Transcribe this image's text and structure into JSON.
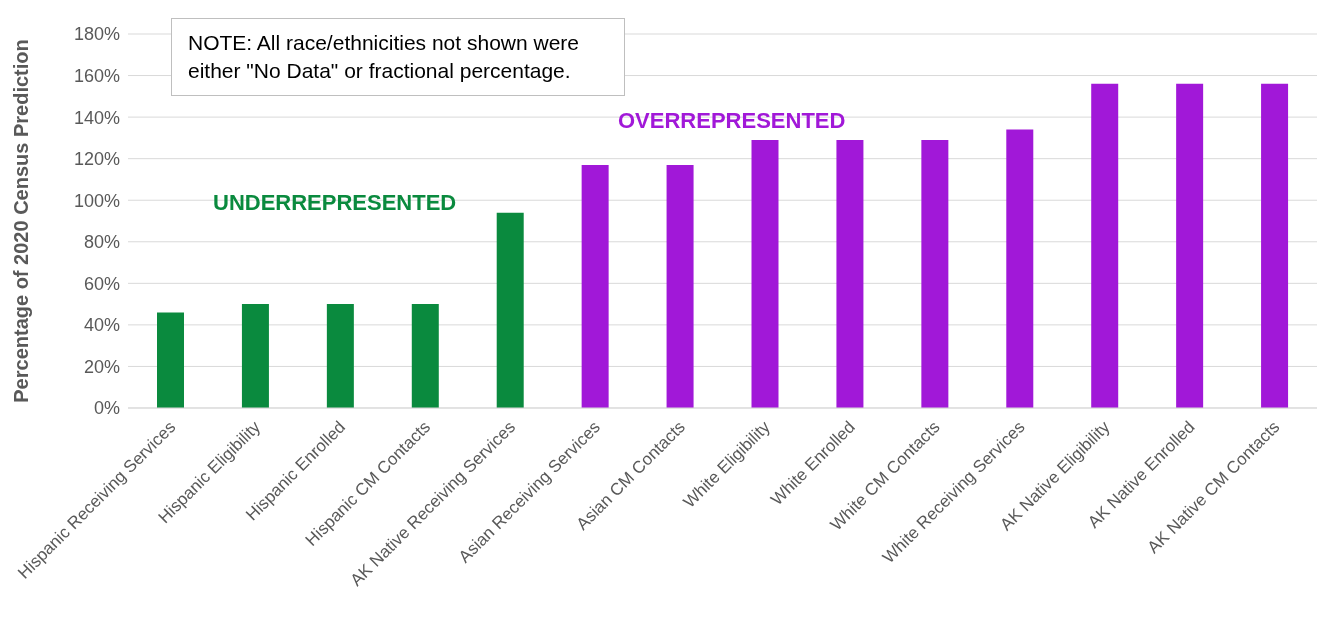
{
  "chart_data": {
    "type": "bar",
    "ylabel": "Percentage of 2020 Census Prediction",
    "categories": [
      "Hispanic Receiving Services",
      "Hispanic Eligibility",
      "Hispanic Enrolled",
      "Hispanic CM Contacts",
      "AK Native Receiving Services",
      "Asian Receiving Services",
      "Asian CM Contacts",
      "White  Eligibility",
      "White  Enrolled",
      "White  CM Contacts",
      "White  Receiving Services",
      "AK Native Eligibility",
      "AK Native Enrolled",
      "AK Native CM Contacts"
    ],
    "values": [
      46,
      50,
      50,
      50,
      94,
      117,
      117,
      129,
      129,
      129,
      134,
      156,
      156,
      156
    ],
    "colors": [
      "#0a8a3e",
      "#0a8a3e",
      "#0a8a3e",
      "#0a8a3e",
      "#0a8a3e",
      "#a118d8",
      "#a118d8",
      "#a118d8",
      "#a118d8",
      "#a118d8",
      "#a118d8",
      "#a118d8",
      "#a118d8",
      "#a118d8"
    ],
    "ylim": [
      0,
      180
    ],
    "yticks": [
      {
        "value": 0,
        "label": "0%"
      },
      {
        "value": 20,
        "label": "20%"
      },
      {
        "value": 40,
        "label": "40%"
      },
      {
        "value": 60,
        "label": "60%"
      },
      {
        "value": 80,
        "label": "80%"
      },
      {
        "value": 100,
        "label": "100%"
      },
      {
        "value": 120,
        "label": "120%"
      },
      {
        "value": 140,
        "label": "140%"
      },
      {
        "value": 160,
        "label": "160%"
      },
      {
        "value": 180,
        "label": "180%"
      }
    ],
    "grid": "y",
    "annotations": [
      "NOTE: All  race/ethnicities not shown were either \"No Data\" or fractional percentage.",
      "UNDERREPRESENTED",
      "OVERREPRESENTED"
    ]
  }
}
